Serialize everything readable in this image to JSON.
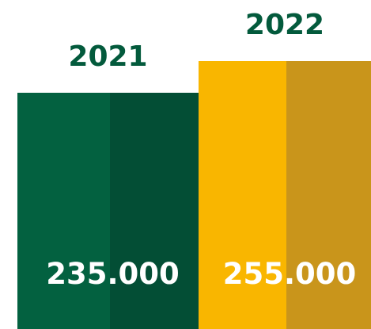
{
  "chart_data": {
    "type": "bar",
    "categories": [
      "2021",
      "2022"
    ],
    "values": [
      235000,
      255000
    ],
    "value_labels": [
      "235.000",
      "255.000"
    ],
    "title": "",
    "xlabel": "",
    "ylabel": "",
    "grid": false,
    "legend": "none",
    "colors": {
      "bars": [
        {
          "light": "#036140",
          "dark": "#034e35"
        },
        {
          "light": "#f9b600",
          "dark": "#c9951b"
        }
      ],
      "category_label": "#035a3c",
      "value_label": "#ffffff",
      "background": "#ffffff"
    }
  }
}
